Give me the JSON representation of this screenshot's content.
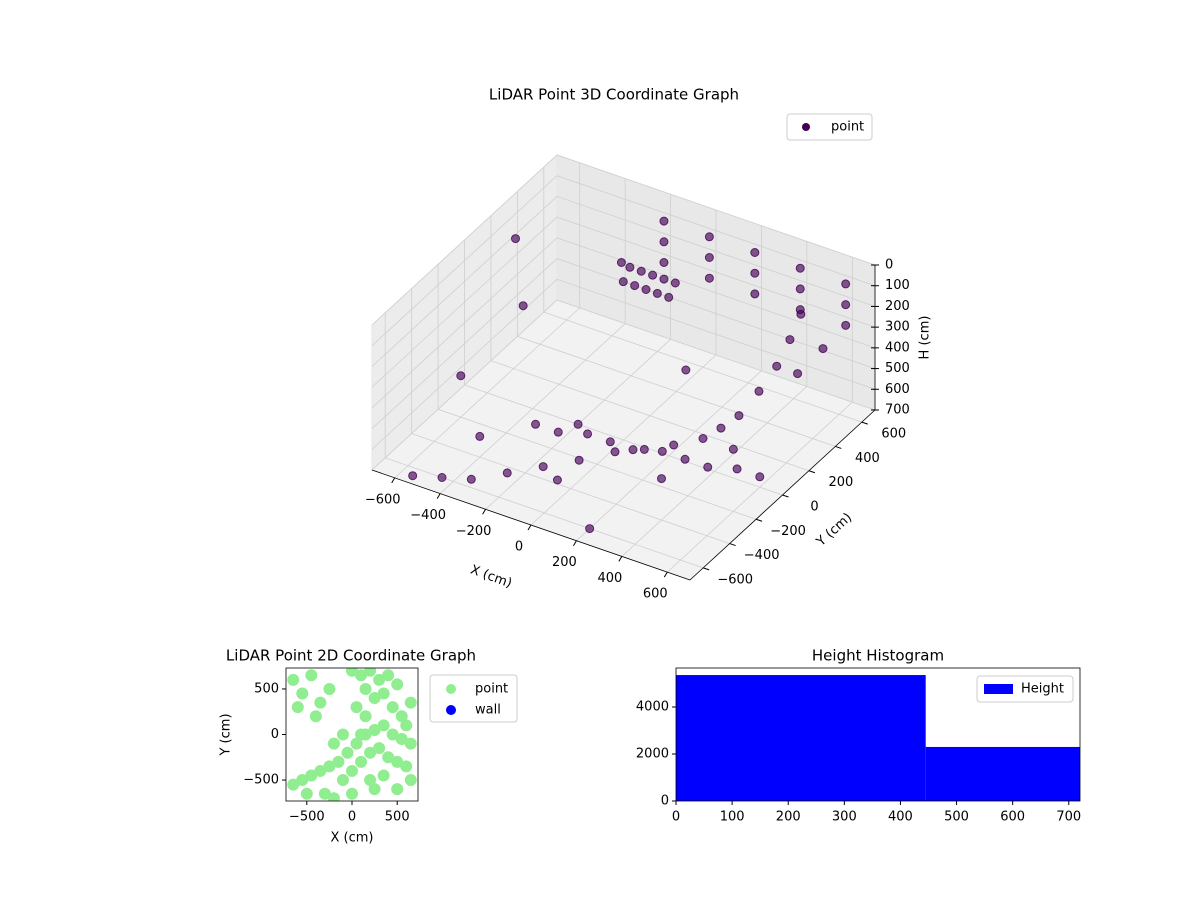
{
  "chart_data": [
    {
      "type": "scatter3d",
      "title": "LiDAR Point 3D Coordinate Graph",
      "xlabel": "X (cm)",
      "ylabel": "Y (cm)",
      "zlabel": "H (cm)",
      "xlim": [
        -700,
        700
      ],
      "ylim": [
        -700,
        700
      ],
      "zlim": [
        0,
        700
      ],
      "z_inverted": true,
      "xticks": [
        {
          "value": -600,
          "label": "−600"
        },
        {
          "value": -400,
          "label": "−400"
        },
        {
          "value": -200,
          "label": "−200"
        },
        0,
        200,
        400,
        600
      ],
      "yticks": [
        {
          "value": -600,
          "label": "−600"
        },
        {
          "value": -400,
          "label": "−400"
        },
        {
          "value": -200,
          "label": "−200"
        },
        0,
        200,
        400,
        600
      ],
      "zticks": [
        0,
        100,
        200,
        300,
        400,
        500,
        600,
        700
      ],
      "grid": true,
      "legend": "upper right",
      "series": [
        {
          "name": "point",
          "color": "#440154",
          "x": [
            -550,
            -450,
            -350,
            -250,
            -150,
            -50,
            50,
            150,
            250,
            350,
            400,
            450,
            480,
            500,
            500,
            490,
            -300,
            -200,
            -100,
            0,
            100,
            200,
            300,
            400,
            500,
            600,
            -350,
            -300,
            -250,
            -200,
            -150,
            -350,
            -300,
            -250,
            -200,
            -150,
            -200,
            0,
            200,
            400,
            600,
            -200,
            0,
            200,
            400,
            600,
            -200,
            0,
            200,
            400,
            600,
            -650,
            -600,
            -500,
            -400,
            -300,
            0,
            200,
            400,
            600,
            650,
            500,
            -200,
            100
          ],
          "y": [
            -650,
            -600,
            -550,
            -450,
            -350,
            -250,
            -150,
            -100,
            -50,
            0,
            50,
            100,
            200,
            300,
            400,
            500,
            -150,
            -150,
            -100,
            -100,
            -100,
            -50,
            -50,
            -50,
            0,
            0,
            600,
            600,
            600,
            600,
            600,
            650,
            650,
            650,
            650,
            650,
            650,
            650,
            650,
            650,
            650,
            650,
            650,
            650,
            650,
            650,
            650,
            650,
            650,
            650,
            650,
            300,
            -200,
            100,
            -400,
            500,
            -500,
            -600,
            -400,
            -200,
            200,
            650,
            0,
            300
          ],
          "z": [
            700,
            700,
            700,
            690,
            680,
            670,
            650,
            630,
            600,
            560,
            520,
            470,
            400,
            330,
            260,
            200,
            650,
            650,
            650,
            650,
            650,
            650,
            650,
            650,
            650,
            650,
            420,
            420,
            420,
            420,
            420,
            380,
            380,
            380,
            380,
            380,
            100,
            100,
            100,
            100,
            100,
            200,
            200,
            200,
            200,
            200,
            300,
            300,
            300,
            300,
            300,
            150,
            500,
            300,
            600,
            250,
            600,
            700,
            500,
            400,
            250,
            450,
            700,
            500
          ]
        }
      ]
    },
    {
      "type": "scatter",
      "title": "LiDAR Point 2D Coordinate Graph",
      "xlabel": "X (cm)",
      "ylabel": "Y (cm)",
      "xlim": [
        -730,
        730
      ],
      "ylim": [
        -730,
        730
      ],
      "xticks": [
        {
          "value": -500,
          "label": "−500"
        },
        0,
        500
      ],
      "yticks": [
        {
          "value": -500,
          "label": "−500"
        },
        0,
        500
      ],
      "legend": "outside right",
      "series": [
        {
          "name": "point",
          "color": "#90ee90",
          "x": [
            -650,
            -550,
            -450,
            -350,
            -600,
            -250,
            -400,
            0,
            100,
            200,
            300,
            400,
            150,
            250,
            350,
            450,
            550,
            600,
            650,
            500,
            50,
            150,
            -650,
            -550,
            -450,
            -350,
            -250,
            -150,
            -50,
            50,
            150,
            250,
            350,
            450,
            550,
            650,
            -100,
            0,
            100,
            200,
            300,
            400,
            500,
            600,
            -300,
            -200,
            -500,
            0,
            200,
            350,
            100,
            -200,
            -100,
            250,
            650,
            500
          ],
          "y": [
            600,
            450,
            650,
            350,
            300,
            500,
            200,
            700,
            650,
            700,
            600,
            650,
            500,
            400,
            450,
            300,
            200,
            100,
            350,
            550,
            300,
            200,
            -550,
            -500,
            -450,
            -400,
            -350,
            -300,
            -200,
            -100,
            0,
            50,
            100,
            0,
            -50,
            -100,
            -500,
            -400,
            -300,
            -200,
            -150,
            -250,
            -300,
            -350,
            -650,
            -700,
            -650,
            -650,
            -500,
            -450,
            0,
            -100,
            0,
            -600,
            -500,
            -600
          ]
        },
        {
          "name": "wall",
          "color": "#0000ff",
          "x": [],
          "y": []
        }
      ]
    },
    {
      "type": "histogram",
      "title": "Height Histogram",
      "bins": [
        0,
        445,
        720
      ],
      "counts": [
        5360,
        2300
      ],
      "xlim": [
        0,
        720
      ],
      "ylim": [
        0,
        5660
      ],
      "xticks": [
        0,
        100,
        200,
        300,
        400,
        500,
        600,
        700
      ],
      "yticks": [
        0,
        2000,
        4000
      ],
      "legend": "upper right",
      "series": [
        {
          "name": "Height",
          "color": "#0000ff"
        }
      ]
    }
  ]
}
